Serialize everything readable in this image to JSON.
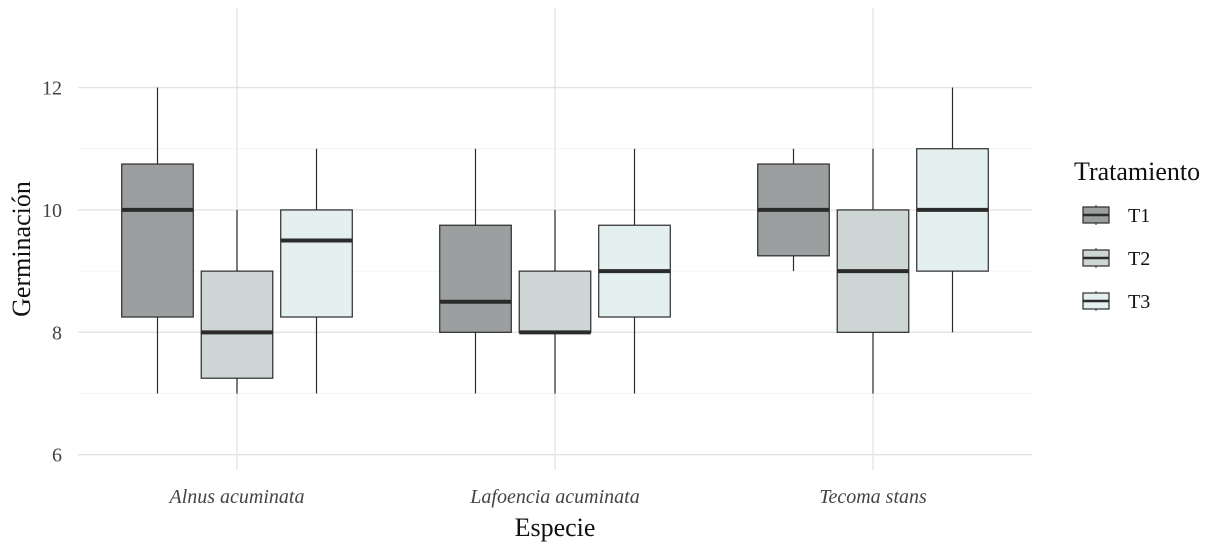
{
  "chart_data": {
    "type": "boxplot",
    "title": "",
    "xlabel": "Especie",
    "ylabel": "Germinación",
    "ylim": [
      5.75,
      13.3
    ],
    "yticks": [
      "6",
      "8",
      "10",
      "12"
    ],
    "grid": true,
    "legend": {
      "title": "Tratamiento",
      "position": "right"
    },
    "categories": [
      "Alnus acuminata",
      "Lafoencia acuminata",
      "Tecoma stans"
    ],
    "series": [
      {
        "name": "T1",
        "color": "#9c9f9f",
        "boxes": [
          {
            "min": 7,
            "q1": 8.25,
            "median": 10,
            "q3": 10.75,
            "max": 12
          },
          {
            "min": 7,
            "q1": 8,
            "median": 8.5,
            "q3": 9.75,
            "max": 11
          },
          {
            "min": 9,
            "q1": 9.25,
            "median": 10,
            "q3": 10.75,
            "max": 11
          }
        ]
      },
      {
        "name": "T2",
        "color": "#cdd5d5",
        "boxes": [
          {
            "min": 7,
            "q1": 7.25,
            "median": 8,
            "q3": 9,
            "max": 10
          },
          {
            "min": 7,
            "q1": 8,
            "median": 8,
            "q3": 9,
            "max": 10
          },
          {
            "min": 7,
            "q1": 8,
            "median": 9,
            "q3": 10,
            "max": 11
          }
        ]
      },
      {
        "name": "T3",
        "color": "#e4f0f0",
        "boxes": [
          {
            "min": 7,
            "q1": 8.25,
            "median": 9.5,
            "q3": 10,
            "max": 11
          },
          {
            "min": 7,
            "q1": 8.25,
            "median": 9,
            "q3": 9.75,
            "max": 11
          },
          {
            "min": 8,
            "q1": 9,
            "median": 10,
            "q3": 11,
            "max": 12
          }
        ]
      }
    ]
  }
}
